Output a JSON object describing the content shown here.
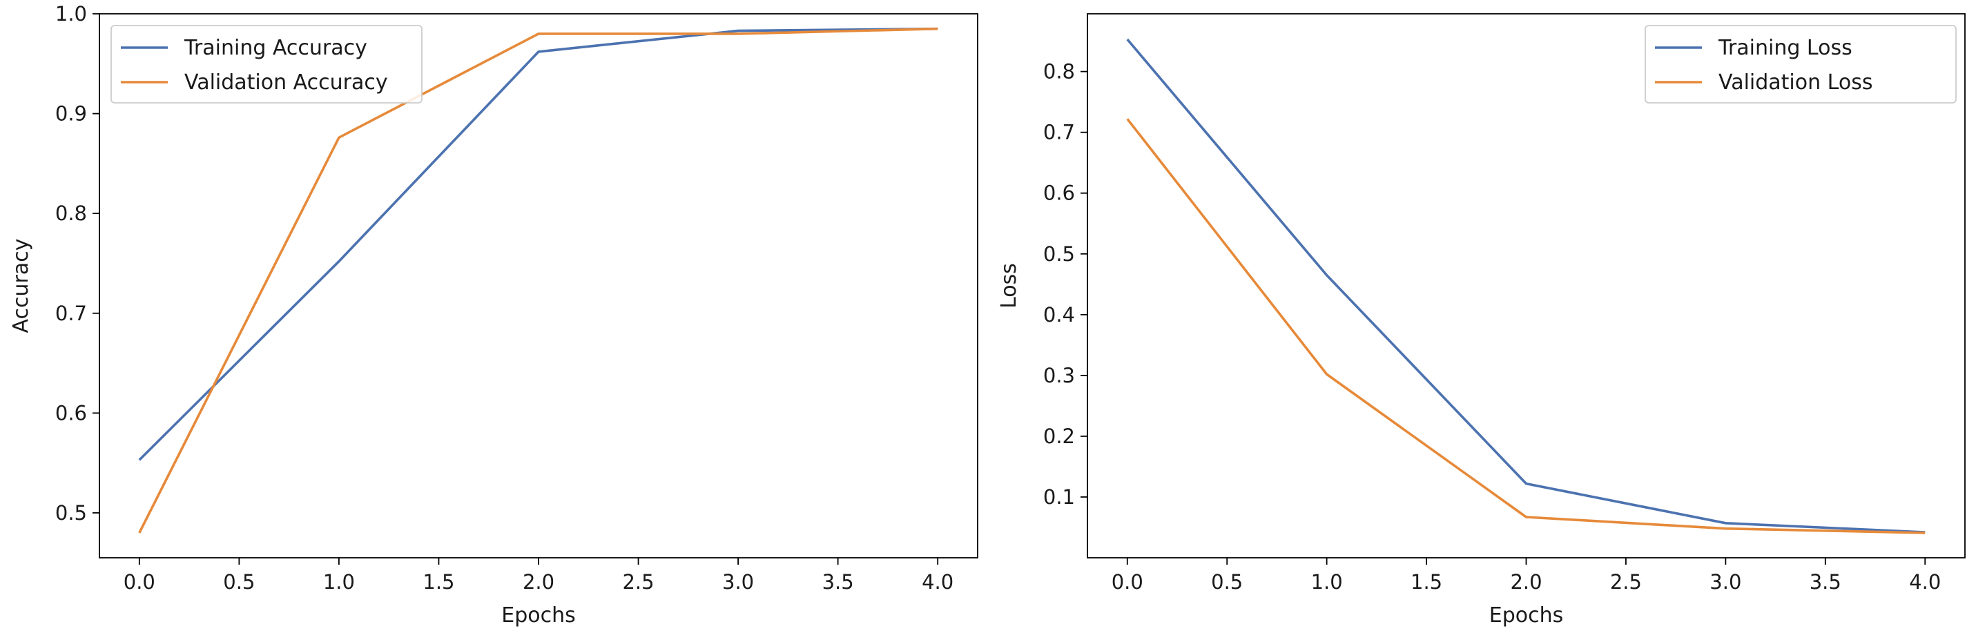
{
  "colors": {
    "series_1": "#4c72b0",
    "series_2": "#e68a3a",
    "axes": "#000000",
    "background": "#ffffff"
  },
  "chart_data": [
    {
      "type": "line",
      "xlabel": "Epochs",
      "ylabel": "Accuracy",
      "xlim": [
        -0.2,
        4.2
      ],
      "ylim": [
        0.455,
        1.0
      ],
      "xticks": [
        0.0,
        0.5,
        1.0,
        1.5,
        2.0,
        2.5,
        3.0,
        3.5,
        4.0
      ],
      "xtick_labels": [
        "0.0",
        "0.5",
        "1.0",
        "1.5",
        "2.0",
        "2.5",
        "3.0",
        "3.5",
        "4.0"
      ],
      "yticks": [
        0.5,
        0.6,
        0.7,
        0.8,
        0.9,
        1.0
      ],
      "ytick_labels": [
        "0.5",
        "0.6",
        "0.7",
        "0.8",
        "0.9",
        "1.0"
      ],
      "grid": false,
      "legend_position": "upper-left",
      "x": [
        0,
        1,
        2,
        3,
        4
      ],
      "series": [
        {
          "name": "Training Accuracy",
          "values": [
            0.553,
            0.752,
            0.962,
            0.983,
            0.985
          ]
        },
        {
          "name": "Validation Accuracy",
          "values": [
            0.48,
            0.876,
            0.98,
            0.98,
            0.985
          ]
        }
      ]
    },
    {
      "type": "line",
      "xlabel": "Epochs",
      "ylabel": "Loss",
      "xlim": [
        -0.2,
        4.2
      ],
      "ylim": [
        0.0,
        0.895
      ],
      "xticks": [
        0.0,
        0.5,
        1.0,
        1.5,
        2.0,
        2.5,
        3.0,
        3.5,
        4.0
      ],
      "xtick_labels": [
        "0.0",
        "0.5",
        "1.0",
        "1.5",
        "2.0",
        "2.5",
        "3.0",
        "3.5",
        "4.0"
      ],
      "yticks": [
        0.1,
        0.2,
        0.3,
        0.4,
        0.5,
        0.6,
        0.7,
        0.8
      ],
      "ytick_labels": [
        "0.1",
        "0.2",
        "0.3",
        "0.4",
        "0.5",
        "0.6",
        "0.7",
        "0.8"
      ],
      "grid": false,
      "legend_position": "upper-right",
      "x": [
        0,
        1,
        2,
        3,
        4
      ],
      "series": [
        {
          "name": "Training Loss",
          "values": [
            0.853,
            0.465,
            0.122,
            0.057,
            0.042
          ]
        },
        {
          "name": "Validation Loss",
          "values": [
            0.722,
            0.302,
            0.067,
            0.048,
            0.041
          ]
        }
      ]
    }
  ]
}
